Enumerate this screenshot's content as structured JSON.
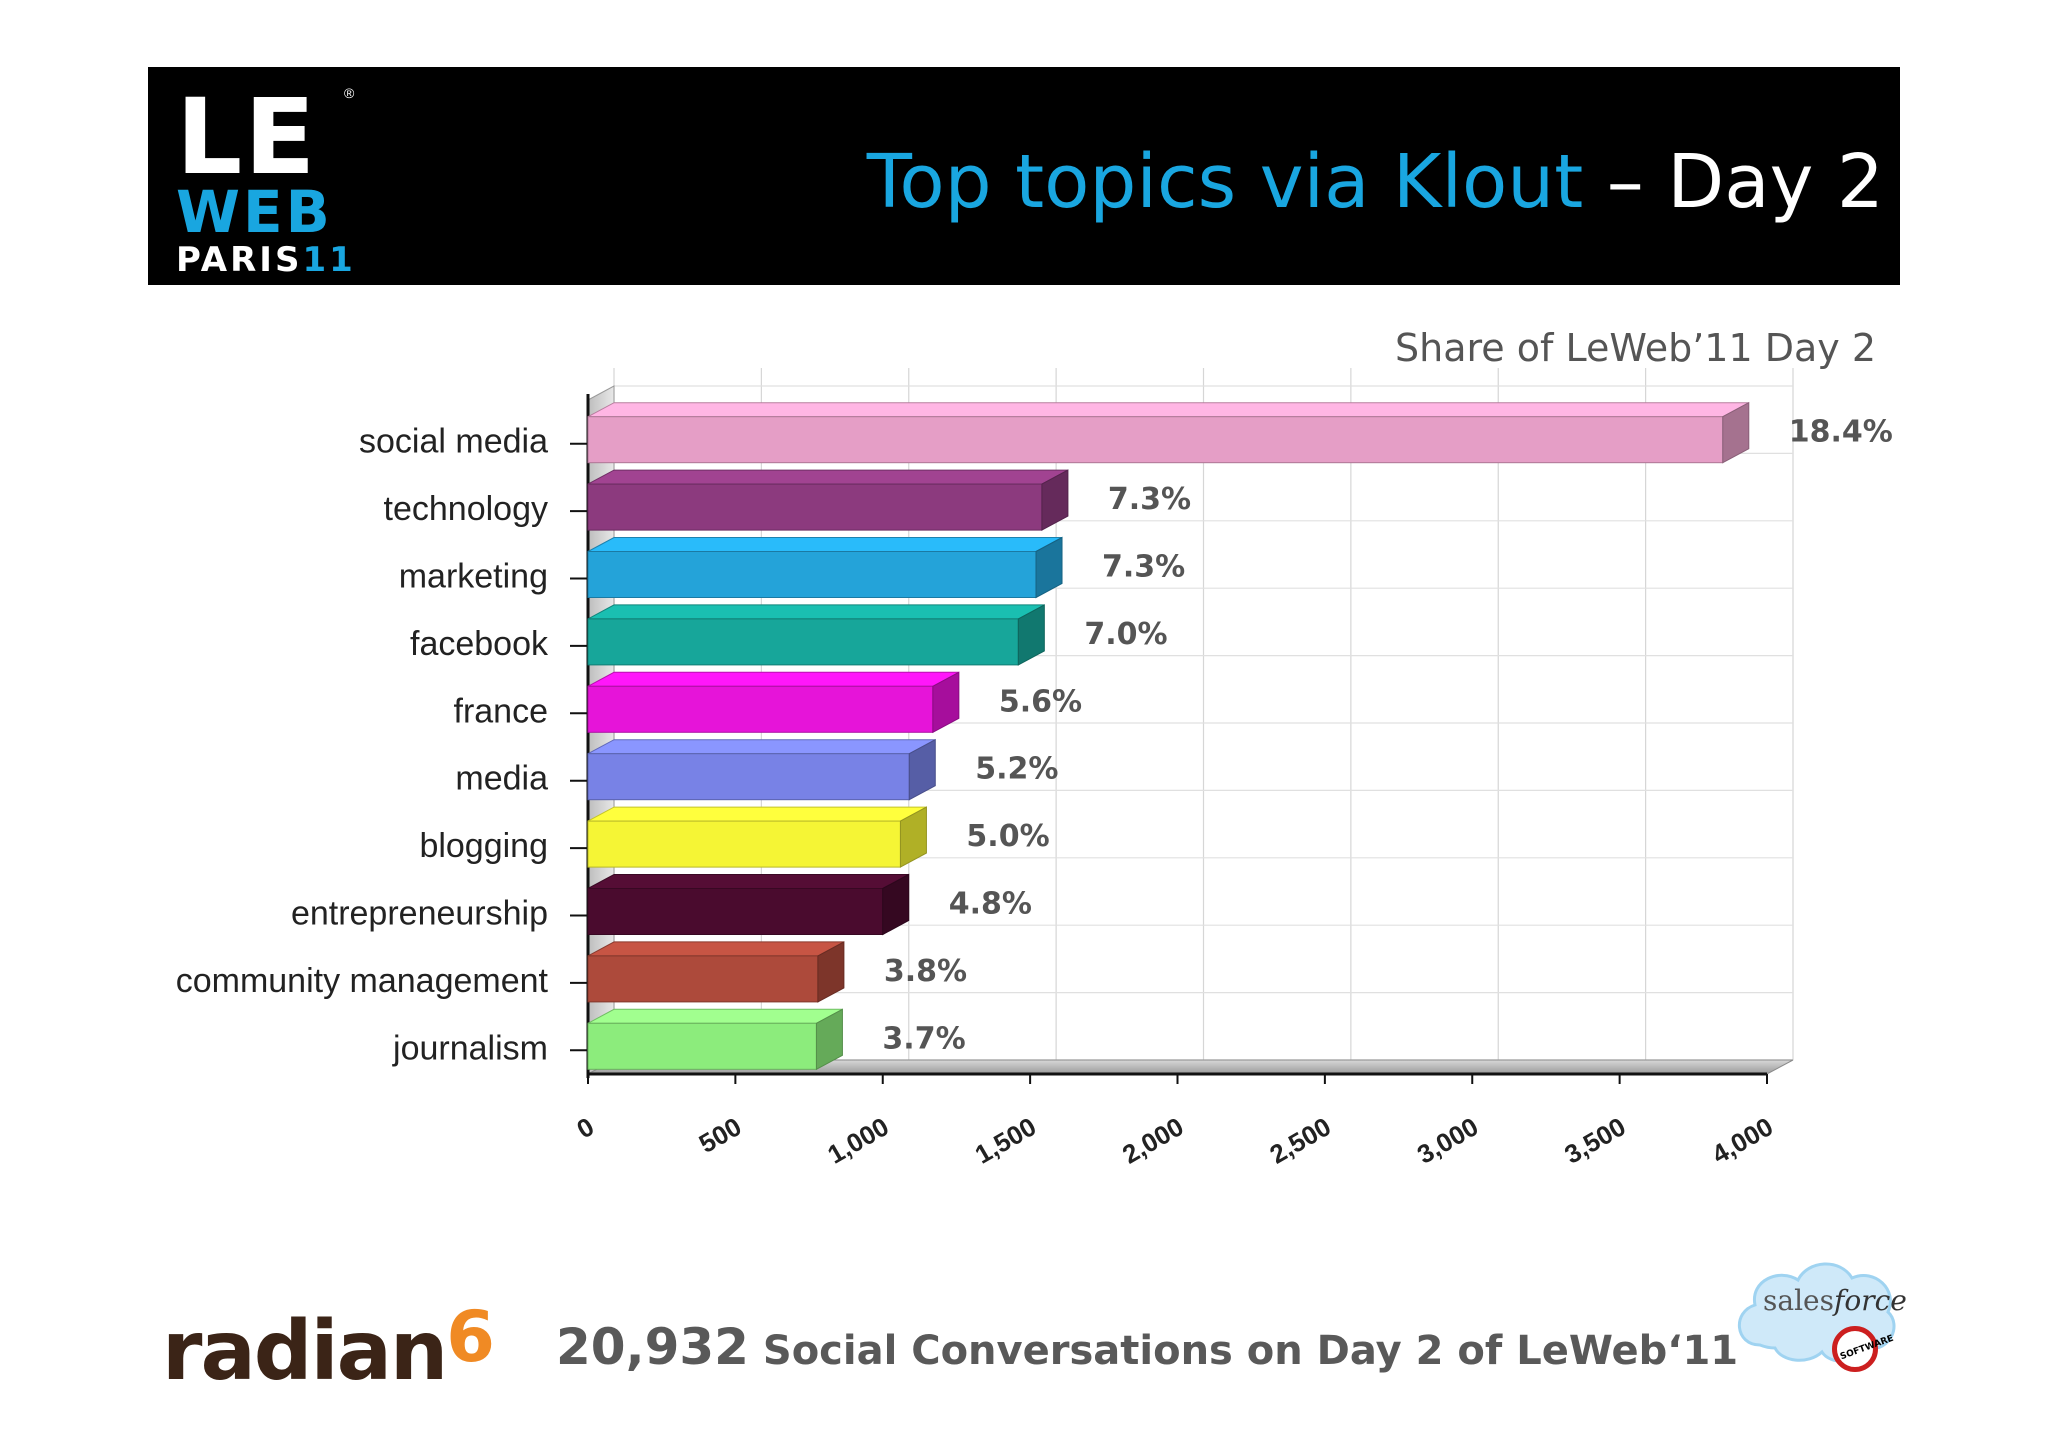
{
  "header": {
    "logo": {
      "line1": "LE",
      "line2": "WEB",
      "line3_text": "PARIS",
      "line3_suffix": "11",
      "registered": "®"
    },
    "title_colored": "Top topics via Klout",
    "title_rest": " – Day 2",
    "colors": {
      "background": "#000000",
      "accent": "#19a6e0"
    }
  },
  "chart_data": {
    "type": "bar",
    "orientation": "horizontal",
    "style": "3d",
    "title": "Share of LeWeb’11 Day 2",
    "categories": [
      "social media",
      "technology",
      "marketing",
      "facebook",
      "france",
      "media",
      "blogging",
      "entrepreneurship",
      "community management",
      "journalism"
    ],
    "values": [
      3850,
      1540,
      1520,
      1460,
      1170,
      1090,
      1060,
      1000,
      780,
      775
    ],
    "data_labels": [
      "18.4%",
      "7.3%",
      "7.3%",
      "7.0%",
      "5.6%",
      "5.2%",
      "5.0%",
      "4.8%",
      "3.8%",
      "3.7%"
    ],
    "colors": [
      "#e59ec6",
      "#8c3a7e",
      "#24a3d9",
      "#17a69a",
      "#e614d9",
      "#7882e6",
      "#f5f535",
      "#4a0b2e",
      "#ad4a3b",
      "#8cec7c"
    ],
    "x_ticks": [
      "0",
      "500",
      "1,000",
      "1,500",
      "2,000",
      "2,500",
      "3,000",
      "3,500",
      "4,000"
    ],
    "xlim": [
      0,
      4000
    ],
    "grid": true
  },
  "footer": {
    "brand_left": "radian",
    "brand_left_mark": "6",
    "stat_number": "20,932",
    "stat_text": " Social Conversations on Day 2 of LeWeb‘11",
    "brand_right_plain": "sales",
    "brand_right_italic": "force",
    "badge_text": "SOFTWARE"
  }
}
